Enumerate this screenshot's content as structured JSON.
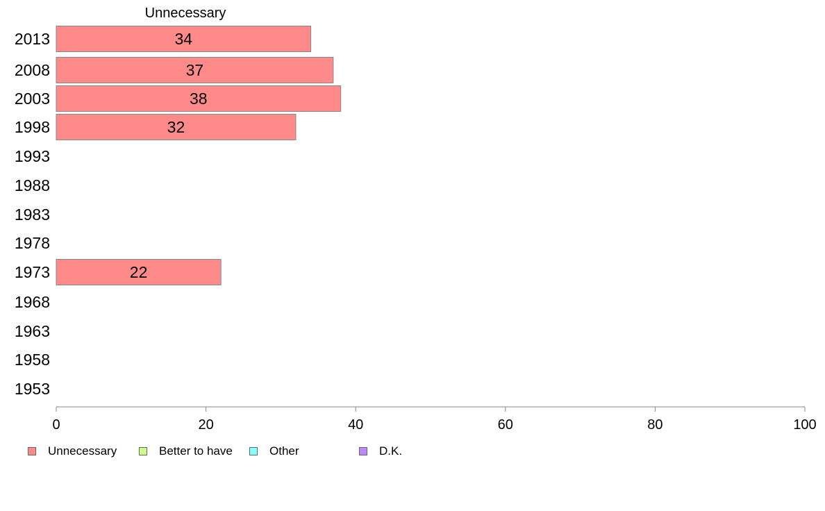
{
  "chart_data": {
    "type": "bar",
    "orientation": "horizontal",
    "title": "Unnecessary",
    "categories": [
      "2013",
      "2008",
      "2003",
      "1998",
      "1993",
      "1988",
      "1983",
      "1978",
      "1973",
      "1968",
      "1963",
      "1958",
      "1953"
    ],
    "series": [
      {
        "name": "Unnecessary",
        "color": "#ff8a8a",
        "values": [
          34,
          37,
          38,
          32,
          null,
          null,
          null,
          null,
          22,
          null,
          null,
          null,
          null
        ]
      },
      {
        "name": "Better to have",
        "color": "#ccff88",
        "values": [
          null,
          null,
          null,
          null,
          null,
          null,
          null,
          null,
          null,
          null,
          null,
          null,
          null
        ]
      },
      {
        "name": "Other",
        "color": "#88ffff",
        "values": [
          null,
          null,
          null,
          null,
          null,
          null,
          null,
          null,
          null,
          null,
          null,
          null,
          null
        ]
      },
      {
        "name": "D.K.",
        "color": "#bb88ff",
        "values": [
          null,
          null,
          null,
          null,
          null,
          null,
          null,
          null,
          null,
          null,
          null,
          null,
          null
        ]
      }
    ],
    "data_labels": [
      "34",
      "37",
      "38",
      "32",
      "",
      "",
      "",
      "",
      "22",
      "",
      "",
      "",
      ""
    ],
    "xlim": [
      0,
      100
    ],
    "xticks": [
      0,
      20,
      40,
      60,
      80,
      100
    ],
    "xlabel": "",
    "ylabel": "",
    "grid": false,
    "legend_position": "bottom-left"
  }
}
